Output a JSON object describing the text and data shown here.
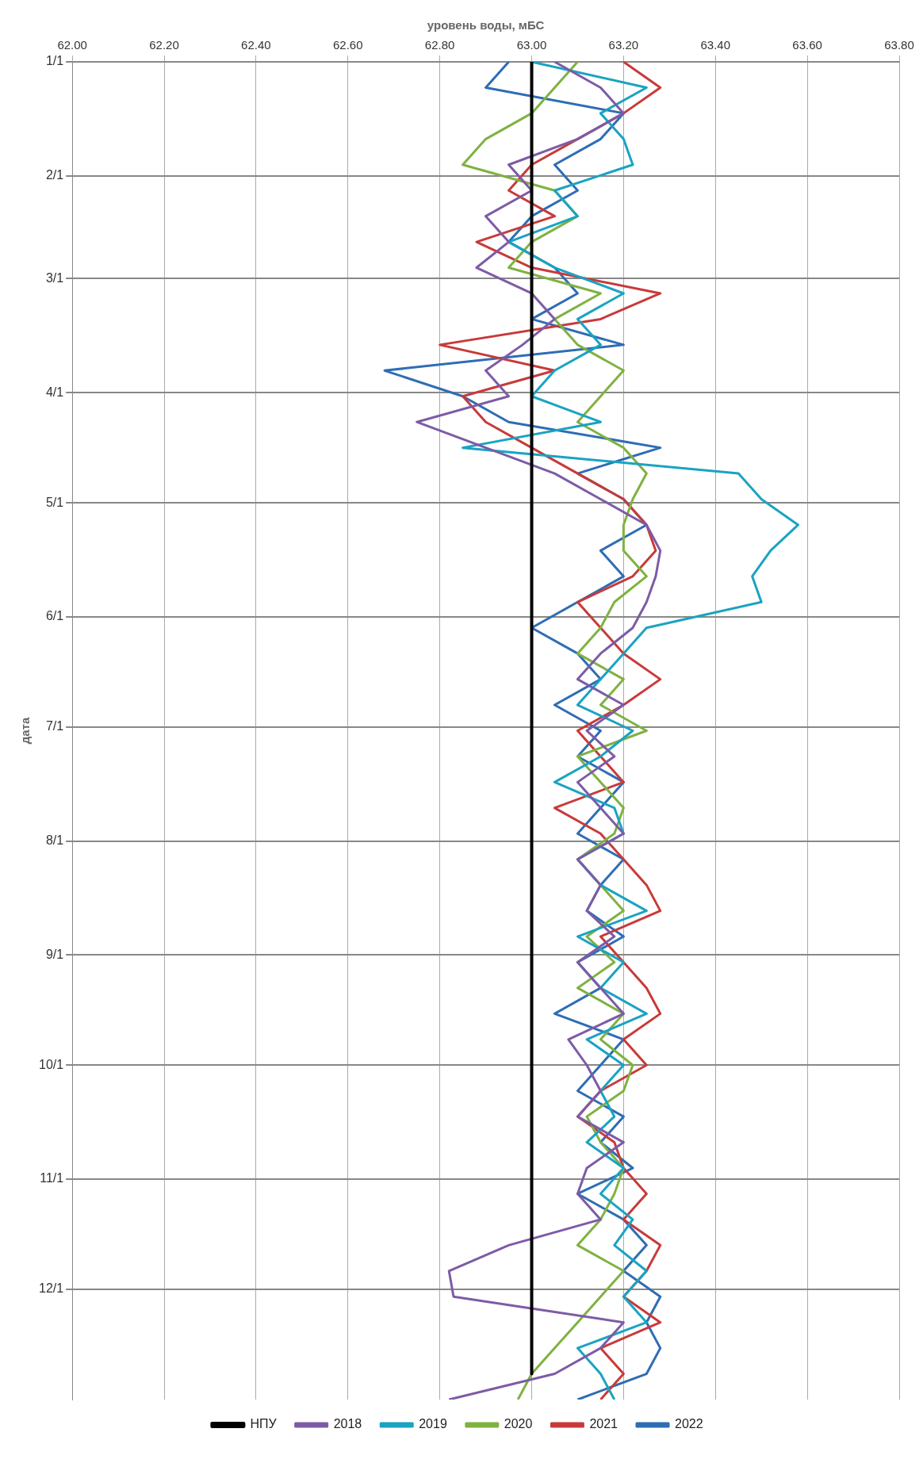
{
  "chart_data": {
    "type": "line",
    "orientation": "horizontal",
    "xlabel": "уровень воды, мБС",
    "ylabel": "дата",
    "x": [
      "--01-01",
      "--01-08",
      "--01-15",
      "--01-22",
      "--01-29",
      "--02-05",
      "--02-12",
      "--02-19",
      "--02-26",
      "--03-05",
      "--03-12",
      "--03-19",
      "--03-26",
      "--04-02",
      "--04-09",
      "--04-16",
      "--04-23",
      "--04-30",
      "--05-07",
      "--05-14",
      "--05-21",
      "--05-28",
      "--06-04",
      "--06-11",
      "--06-18",
      "--06-25",
      "--07-02",
      "--07-09",
      "--07-16",
      "--07-23",
      "--07-30",
      "--08-06",
      "--08-13",
      "--08-20",
      "--08-27",
      "--09-03",
      "--09-10",
      "--09-17",
      "--09-24",
      "--10-01",
      "--10-08",
      "--10-15",
      "--10-22",
      "--10-29",
      "--11-05",
      "--11-12",
      "--11-19",
      "--11-26",
      "--12-03",
      "--12-10",
      "--12-17",
      "--12-24",
      "--12-31"
    ],
    "xlim": [
      62,
      63.8
    ],
    "xticks": [
      {
        "value": 62,
        "label": "62.00"
      },
      {
        "value": 62.2,
        "label": "62.20"
      },
      {
        "value": 62.4,
        "label": "62.40"
      },
      {
        "value": 62.6,
        "label": "62.60"
      },
      {
        "value": 62.8,
        "label": "62.80"
      },
      {
        "value": 63,
        "label": "63.00"
      },
      {
        "value": 63.2,
        "label": "63.20"
      },
      {
        "value": 63.4,
        "label": "63.40"
      },
      {
        "value": 63.6,
        "label": "63.60"
      },
      {
        "value": 63.8,
        "label": "63.80"
      }
    ],
    "ylim": [
      "--12-31",
      "--01-01"
    ],
    "yticks": [
      {
        "value": "--01-01",
        "label": "1/1"
      },
      {
        "value": "--02-01",
        "label": "2/1"
      },
      {
        "value": "--03-01",
        "label": "3/1"
      },
      {
        "value": "--04-01",
        "label": "4/1"
      },
      {
        "value": "--05-01",
        "label": "5/1"
      },
      {
        "value": "--06-01",
        "label": "6/1"
      },
      {
        "value": "--07-01",
        "label": "7/1"
      },
      {
        "value": "--08-01",
        "label": "8/1"
      },
      {
        "value": "--09-01",
        "label": "9/1"
      },
      {
        "value": "--10-01",
        "label": "10/1"
      },
      {
        "value": "--11-01",
        "label": "11/1"
      },
      {
        "value": "--12-01",
        "label": "12/1"
      }
    ],
    "grid": true,
    "legend": "bottom",
    "marker": "none",
    "line_style": "solid",
    "series": [
      {
        "name": "НПУ",
        "color": "#000000",
        "x": [
          "--01-01",
          "--12-24"
        ],
        "values": [
          63,
          63
        ]
      },
      {
        "name": "2018",
        "color": "#7d5ba6",
        "values": [
          63.05,
          63.15,
          63.2,
          63.1,
          62.95,
          63.0,
          62.9,
          62.95,
          62.88,
          63.0,
          63.05,
          62.98,
          62.9,
          62.95,
          62.75,
          62.9,
          63.05,
          63.15,
          63.25,
          63.28,
          63.27,
          63.25,
          63.22,
          63.15,
          63.1,
          63.2,
          63.12,
          63.18,
          63.1,
          63.15,
          63.2,
          63.1,
          63.15,
          63.12,
          63.18,
          63.1,
          63.15,
          63.2,
          63.08,
          63.12,
          63.15,
          63.1,
          63.2,
          63.12,
          63.1,
          63.15,
          62.95,
          62.82,
          62.83,
          63.2,
          63.15,
          63.05,
          62.82
        ]
      },
      {
        "name": "2019",
        "color": "#1aa3c2",
        "values": [
          63.0,
          63.25,
          63.15,
          63.2,
          63.22,
          63.05,
          63.1,
          62.95,
          63.05,
          63.2,
          63.1,
          63.15,
          63.05,
          63.0,
          63.15,
          62.85,
          63.45,
          63.5,
          63.58,
          63.52,
          63.48,
          63.5,
          63.25,
          63.2,
          63.15,
          63.1,
          63.22,
          63.15,
          63.05,
          63.18,
          63.2,
          63.1,
          63.15,
          63.25,
          63.1,
          63.2,
          63.15,
          63.25,
          63.12,
          63.2,
          63.15,
          63.18,
          63.12,
          63.2,
          63.15,
          63.22,
          63.18,
          63.25,
          63.2,
          63.25,
          63.1,
          63.15,
          63.18
        ]
      },
      {
        "name": "2020",
        "color": "#7fb241",
        "values": [
          63.1,
          63.05,
          63.0,
          62.9,
          62.85,
          63.05,
          63.1,
          63.0,
          62.95,
          63.15,
          63.05,
          63.1,
          63.2,
          63.15,
          63.1,
          63.2,
          63.25,
          63.22,
          63.2,
          63.2,
          63.25,
          63.18,
          63.15,
          63.1,
          63.2,
          63.15,
          63.25,
          63.1,
          63.15,
          63.2,
          63.18,
          63.1,
          63.15,
          63.2,
          63.12,
          63.18,
          63.1,
          63.2,
          63.15,
          63.22,
          63.2,
          63.12,
          63.15,
          63.2,
          63.18,
          63.15,
          63.1,
          63.2,
          63.15,
          63.1,
          63.05,
          63.0,
          62.97
        ]
      },
      {
        "name": "2021",
        "color": "#c83a3a",
        "values": [
          63.2,
          63.28,
          63.2,
          63.1,
          63.0,
          62.95,
          63.05,
          62.88,
          63.0,
          63.28,
          63.15,
          62.8,
          63.05,
          62.85,
          62.9,
          63.0,
          63.1,
          63.2,
          63.25,
          63.27,
          63.22,
          63.1,
          63.15,
          63.2,
          63.28,
          63.2,
          63.1,
          63.15,
          63.2,
          63.05,
          63.15,
          63.2,
          63.25,
          63.28,
          63.15,
          63.2,
          63.25,
          63.28,
          63.2,
          63.25,
          63.15,
          63.1,
          63.18,
          63.2,
          63.25,
          63.2,
          63.28,
          63.25,
          63.2,
          63.28,
          63.15,
          63.2,
          63.15
        ]
      },
      {
        "name": "2022",
        "color": "#2e6db4",
        "values": [
          62.95,
          62.9,
          63.2,
          63.15,
          63.05,
          63.1,
          63.0,
          62.95,
          63.05,
          63.1,
          63.0,
          63.2,
          62.68,
          62.85,
          62.95,
          63.28,
          63.1,
          63.2,
          63.25,
          63.15,
          63.2,
          63.1,
          63.0,
          63.1,
          63.15,
          63.05,
          63.15,
          63.1,
          63.2,
          63.15,
          63.1,
          63.2,
          63.15,
          63.12,
          63.2,
          63.1,
          63.15,
          63.05,
          63.2,
          63.15,
          63.1,
          63.2,
          63.15,
          63.22,
          63.1,
          63.2,
          63.25,
          63.2,
          63.28,
          63.25,
          63.28,
          63.25,
          63.1
        ]
      }
    ]
  }
}
